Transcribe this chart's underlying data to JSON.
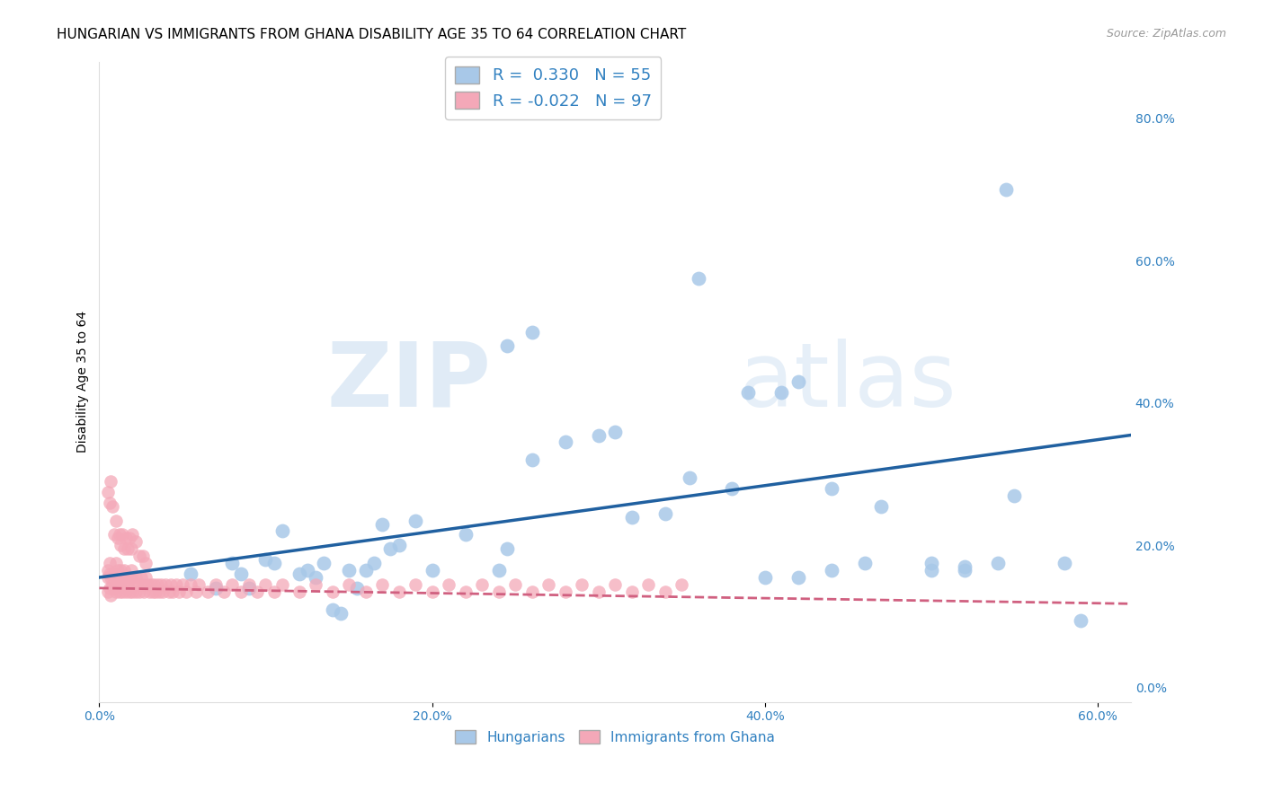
{
  "title": "HUNGARIAN VS IMMIGRANTS FROM GHANA DISABILITY AGE 35 TO 64 CORRELATION CHART",
  "source": "Source: ZipAtlas.com",
  "ylabel": "Disability Age 35 to 64",
  "xlim": [
    0.0,
    0.62
  ],
  "ylim": [
    -0.02,
    0.88
  ],
  "blue_color": "#A8C8E8",
  "pink_color": "#F4A8B8",
  "blue_line_color": "#2060A0",
  "pink_line_color": "#D06080",
  "legend_R_blue": "0.330",
  "legend_N_blue": "55",
  "legend_R_pink": "-0.022",
  "legend_N_pink": "97",
  "watermark_zip": "ZIP",
  "watermark_atlas": "atlas",
  "grid_color": "#CCCCCC",
  "background_color": "#FFFFFF",
  "title_fontsize": 11,
  "axis_label_fontsize": 10,
  "tick_fontsize": 10,
  "legend_fontsize": 13,
  "blue_scatter_x": [
    0.055,
    0.07,
    0.08,
    0.085,
    0.09,
    0.1,
    0.105,
    0.11,
    0.12,
    0.125,
    0.13,
    0.135,
    0.14,
    0.145,
    0.15,
    0.155,
    0.16,
    0.165,
    0.17,
    0.175,
    0.18,
    0.19,
    0.2,
    0.22,
    0.24,
    0.245,
    0.26,
    0.28,
    0.3,
    0.32,
    0.34,
    0.355,
    0.38,
    0.4,
    0.42,
    0.44,
    0.46,
    0.5,
    0.52,
    0.54,
    0.55,
    0.58,
    0.59,
    0.245,
    0.26,
    0.31,
    0.36,
    0.39,
    0.41,
    0.42,
    0.44,
    0.47,
    0.5,
    0.52,
    0.545
  ],
  "blue_scatter_y": [
    0.16,
    0.14,
    0.175,
    0.16,
    0.14,
    0.18,
    0.175,
    0.22,
    0.16,
    0.165,
    0.155,
    0.175,
    0.11,
    0.105,
    0.165,
    0.14,
    0.165,
    0.175,
    0.23,
    0.195,
    0.2,
    0.235,
    0.165,
    0.215,
    0.165,
    0.195,
    0.32,
    0.345,
    0.355,
    0.24,
    0.245,
    0.295,
    0.28,
    0.155,
    0.155,
    0.165,
    0.175,
    0.165,
    0.165,
    0.175,
    0.27,
    0.175,
    0.095,
    0.48,
    0.5,
    0.36,
    0.575,
    0.415,
    0.415,
    0.43,
    0.28,
    0.255,
    0.175,
    0.17,
    0.7
  ],
  "pink_scatter_x": [
    0.005,
    0.005,
    0.005,
    0.006,
    0.006,
    0.006,
    0.007,
    0.007,
    0.008,
    0.008,
    0.009,
    0.009,
    0.01,
    0.01,
    0.01,
    0.011,
    0.011,
    0.012,
    0.012,
    0.013,
    0.013,
    0.014,
    0.014,
    0.015,
    0.015,
    0.016,
    0.016,
    0.017,
    0.018,
    0.018,
    0.019,
    0.02,
    0.02,
    0.021,
    0.022,
    0.022,
    0.023,
    0.024,
    0.025,
    0.026,
    0.027,
    0.028,
    0.029,
    0.03,
    0.031,
    0.032,
    0.033,
    0.034,
    0.035,
    0.036,
    0.037,
    0.038,
    0.04,
    0.042,
    0.043,
    0.044,
    0.046,
    0.048,
    0.05,
    0.052,
    0.055,
    0.058,
    0.06,
    0.065,
    0.07,
    0.075,
    0.08,
    0.085,
    0.09,
    0.095,
    0.1,
    0.105,
    0.11,
    0.12,
    0.13,
    0.14,
    0.15,
    0.16,
    0.17,
    0.18,
    0.19,
    0.2,
    0.21,
    0.22,
    0.23,
    0.24,
    0.25,
    0.26,
    0.27,
    0.28,
    0.29,
    0.3,
    0.31,
    0.32,
    0.33,
    0.34,
    0.35
  ],
  "pink_scatter_y": [
    0.155,
    0.165,
    0.135,
    0.14,
    0.16,
    0.175,
    0.13,
    0.155,
    0.145,
    0.16,
    0.14,
    0.16,
    0.135,
    0.155,
    0.175,
    0.145,
    0.165,
    0.135,
    0.155,
    0.145,
    0.165,
    0.135,
    0.155,
    0.145,
    0.165,
    0.135,
    0.155,
    0.145,
    0.135,
    0.155,
    0.165,
    0.135,
    0.155,
    0.145,
    0.135,
    0.155,
    0.145,
    0.135,
    0.155,
    0.145,
    0.135,
    0.155,
    0.145,
    0.135,
    0.145,
    0.135,
    0.145,
    0.135,
    0.145,
    0.135,
    0.145,
    0.135,
    0.145,
    0.135,
    0.145,
    0.135,
    0.145,
    0.135,
    0.145,
    0.135,
    0.145,
    0.135,
    0.145,
    0.135,
    0.145,
    0.135,
    0.145,
    0.135,
    0.145,
    0.135,
    0.145,
    0.135,
    0.145,
    0.135,
    0.145,
    0.135,
    0.145,
    0.135,
    0.145,
    0.135,
    0.145,
    0.135,
    0.145,
    0.135,
    0.145,
    0.135,
    0.145,
    0.135,
    0.145,
    0.135,
    0.145,
    0.135,
    0.145,
    0.135,
    0.145,
    0.135,
    0.145
  ],
  "pink_extra_x": [
    0.005,
    0.006,
    0.007,
    0.008,
    0.009,
    0.01,
    0.011,
    0.012,
    0.013,
    0.014,
    0.015,
    0.016,
    0.017,
    0.018,
    0.019,
    0.02,
    0.022,
    0.024,
    0.026,
    0.028
  ],
  "pink_extra_y": [
    0.275,
    0.26,
    0.29,
    0.255,
    0.215,
    0.235,
    0.21,
    0.215,
    0.2,
    0.215,
    0.195,
    0.21,
    0.195,
    0.21,
    0.195,
    0.215,
    0.205,
    0.185,
    0.185,
    0.175
  ],
  "blue_line_x0": 0.0,
  "blue_line_x1": 0.62,
  "blue_line_y0": 0.155,
  "blue_line_y1": 0.355,
  "pink_line_x0": 0.0,
  "pink_line_x1": 0.62,
  "pink_line_y0": 0.14,
  "pink_line_y1": 0.118
}
